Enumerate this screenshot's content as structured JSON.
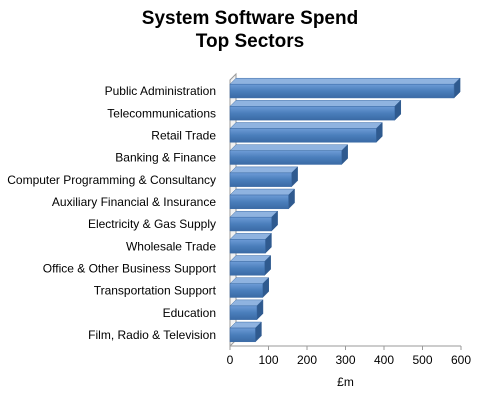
{
  "chart_data": {
    "type": "bar",
    "orientation": "horizontal",
    "title": "System Software Spend",
    "subtitle": "Top Sectors",
    "xlabel": "£m",
    "ylabel": "",
    "xlim": [
      0,
      600
    ],
    "xticks": [
      0,
      100,
      200,
      300,
      400,
      500,
      600
    ],
    "grid": false,
    "legend": "none",
    "bar_color": "#4a7ebb",
    "categories": [
      "Public Administration",
      "Telecommunications",
      "Retail Trade",
      "Banking & Finance",
      "Computer Programming & Consultancy",
      "Auxiliary Financial & Insurance",
      "Electricity & Gas Supply",
      "Wholesale Trade",
      "Office & Other Business Support",
      "Transportation Support",
      "Education",
      "Film, Radio & Television"
    ],
    "values": [
      582,
      428,
      380,
      290,
      160,
      152,
      108,
      92,
      90,
      85,
      70,
      66
    ]
  }
}
